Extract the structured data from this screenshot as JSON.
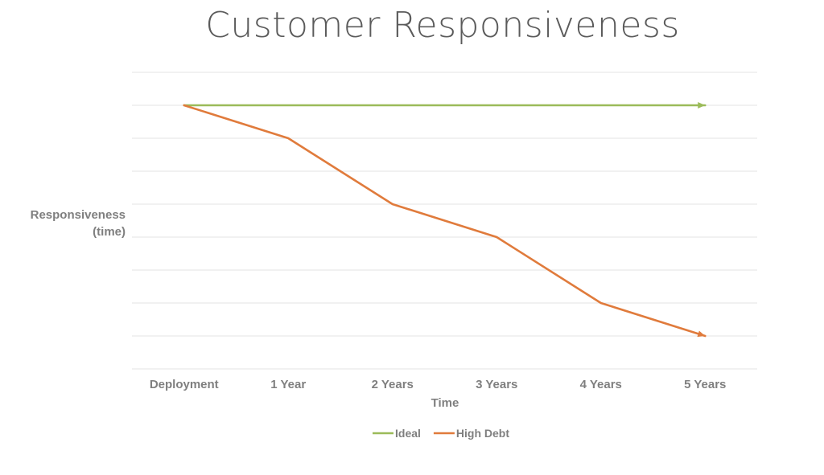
{
  "chart_data": {
    "type": "line",
    "title": "Customer Responsiveness",
    "xlabel": "Time",
    "ylabel_lines": [
      "Responsiveness",
      "(time)"
    ],
    "categories": [
      "Deployment",
      "1 Year",
      "2 Years",
      "3 Years",
      "4 Years",
      "5 Years"
    ],
    "ylim": [
      0,
      9
    ],
    "grid": true,
    "legend_position": "bottom",
    "series": [
      {
        "name": "Ideal",
        "color": "#9bbb59",
        "values": [
          8,
          8,
          8,
          8,
          8,
          8
        ]
      },
      {
        "name": "High Debt",
        "color": "#e07b3c",
        "values": [
          8,
          7,
          5,
          4,
          2,
          1
        ]
      }
    ],
    "gridline_color": "#e3e3e3",
    "label_color": "#7f7f7f"
  }
}
